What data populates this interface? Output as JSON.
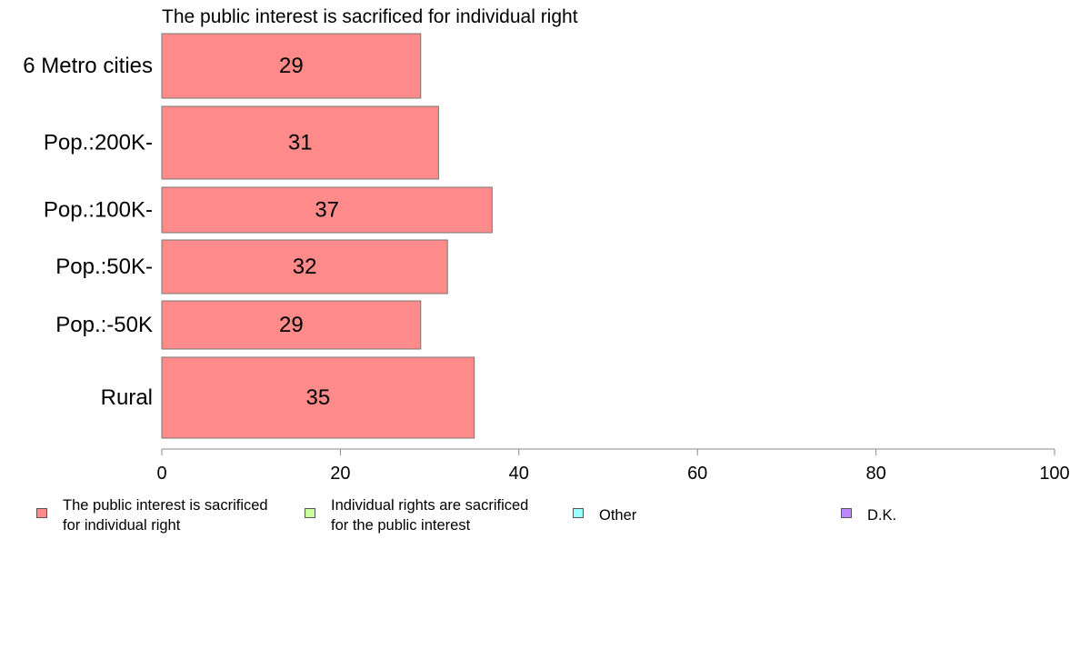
{
  "chart_data": {
    "type": "bar",
    "orientation": "horizontal",
    "title": "The public interest is sacrificed for individual right",
    "categories": [
      "6 Metro cities",
      "Pop.:200K-",
      "Pop.:100K-",
      "Pop.:50K-",
      "Pop.:-50K",
      "Rural"
    ],
    "series": [
      {
        "name": "The public interest is sacrificed for individual right",
        "values": [
          29,
          31,
          37,
          32,
          29,
          35
        ],
        "color": "#ff8a8a"
      }
    ],
    "xlim": [
      0,
      100
    ],
    "xticks": [
      "0",
      "20",
      "40",
      "60",
      "80",
      "100"
    ],
    "grid": false,
    "legend_position": "bottom"
  },
  "legend": {
    "items": [
      {
        "label": "The public interest is sacrificed\nfor individual right",
        "color": "#ff8a8a"
      },
      {
        "label": "Individual rights are sacrificed\nfor the public interest",
        "color": "#ccff99"
      },
      {
        "label": "Other",
        "color": "#99ffff"
      },
      {
        "label": "D.K.",
        "color": "#bb88ff"
      }
    ]
  }
}
